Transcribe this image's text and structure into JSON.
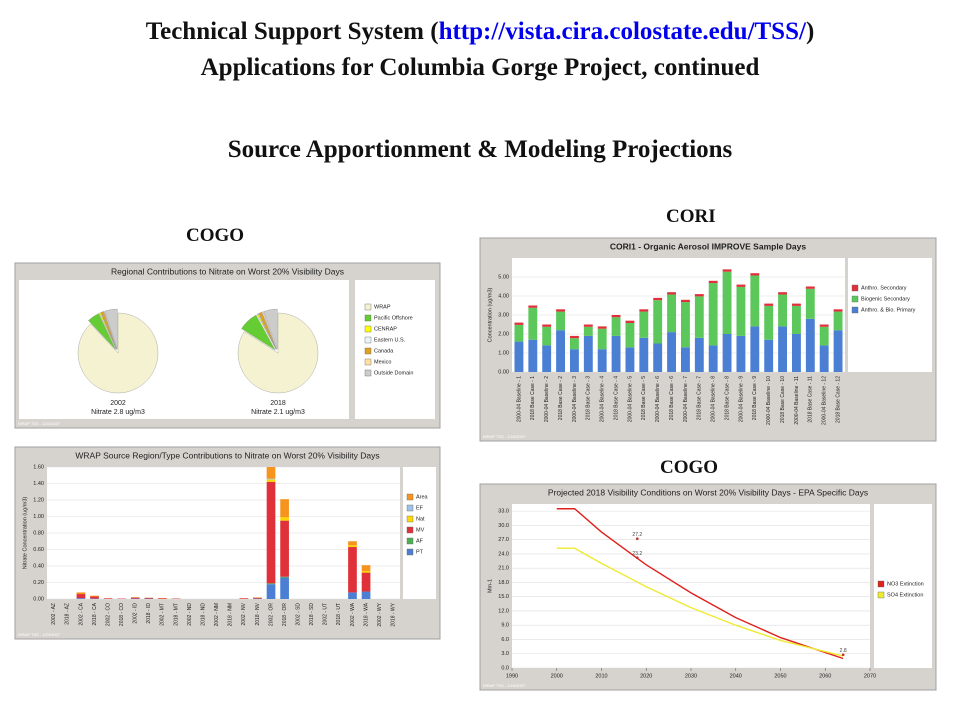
{
  "header": {
    "title_prefix": "Technical Support System (",
    "title_link": "http://vista.cira.colostate.edu/TSS/",
    "title_suffix": ")",
    "title_line2": "Applications for Columbia Gorge Project, continued",
    "subtitle": "Source Apportionment & Modeling Projections"
  },
  "labels": [
    "COGO",
    "CORI",
    "COGO"
  ],
  "chart_data": [
    {
      "type": "pie",
      "title": "Regional Contributions to Nitrate on Worst 20% Visibility Days",
      "footer": "WRAP TSS - 1/24/2007",
      "categories": [
        "WRAP",
        "Pacific Offshore",
        "CENRAP",
        "Eastern U.S.",
        "Canada",
        "Mexico",
        "Outside Domain"
      ],
      "colors": [
        "#f5f2d2",
        "#66cc33",
        "#ffff00",
        "#e8f4fc",
        "#e0a020",
        "#ffe0a0",
        "#cccccc"
      ],
      "pies": [
        {
          "label": "2002",
          "caption": "Nitrate 2.8 ug/m3",
          "values": [
            88,
            5,
            0.5,
            0.2,
            1,
            0.3,
            5
          ]
        },
        {
          "label": "2018",
          "caption": "Nitrate 2.1 ug/m3",
          "values": [
            84,
            8,
            0.5,
            0.3,
            1.2,
            0.5,
            5.5
          ]
        }
      ]
    },
    {
      "type": "stacked_bar",
      "title": "WRAP Source Region/Type Contributions to Nitrate on Worst 20% Visibility Days",
      "footer": "WRAP TSS - 1/24/2007",
      "y_label": "Nitrate Concentration (ug/m3)",
      "categories": [
        "2002 - AZ",
        "2018 - AZ",
        "2002 - CA",
        "2018 - CA",
        "2002 - CO",
        "2018 - CO",
        "2002 - ID",
        "2018 - ID",
        "2002 - MT",
        "2018 - MT",
        "2002 - ND",
        "2018 - ND",
        "2002 - NM",
        "2018 - NM",
        "2002 - NV",
        "2018 - NV",
        "2002 - OR",
        "2018 - OR",
        "2002 - SD",
        "2018 - SD",
        "2002 - UT",
        "2018 - UT",
        "2002 - WA",
        "2018 - WA",
        "2002 - WY",
        "2018 - WY"
      ],
      "ylim": [
        0,
        1.6
      ],
      "yticks": [
        {
          "value": 0,
          "label": "0.00"
        },
        {
          "value": 0.2,
          "label": "0.20"
        },
        {
          "value": 0.4,
          "label": "0.40"
        },
        {
          "value": 0.6,
          "label": "0.60"
        },
        {
          "value": 0.8,
          "label": "0.80"
        },
        {
          "value": 1,
          "label": "1.00"
        },
        {
          "value": 1.2,
          "label": "1.20"
        },
        {
          "value": 1.4,
          "label": "1.40"
        },
        {
          "value": 1.6,
          "label": "1.60"
        }
      ],
      "series": [
        {
          "name": "PT",
          "color": "#4a7fd4",
          "values": [
            0,
            0,
            0.01,
            0.005,
            0,
            0,
            0.005,
            0.005,
            0,
            0,
            0,
            0,
            0,
            0,
            0,
            0.005,
            0.18,
            0.26,
            0,
            0,
            0,
            0,
            0.08,
            0.09,
            0,
            0
          ]
        },
        {
          "name": "AF",
          "color": "#4caf50",
          "values": [
            0,
            0,
            0,
            0,
            0,
            0,
            0,
            0,
            0,
            0,
            0,
            0,
            0,
            0,
            0,
            0,
            0.01,
            0.01,
            0,
            0,
            0,
            0,
            0,
            0,
            0,
            0
          ]
        },
        {
          "name": "MV",
          "color": "#e0303a",
          "values": [
            0,
            0,
            0.05,
            0.025,
            0.008,
            0.005,
            0.012,
            0.008,
            0.008,
            0.005,
            0,
            0,
            0,
            0,
            0.008,
            0.01,
            1.23,
            0.68,
            0,
            0,
            0,
            0,
            0.55,
            0.23,
            0,
            0
          ]
        },
        {
          "name": "Nat",
          "color": "#ffd700",
          "values": [
            0,
            0,
            0,
            0,
            0,
            0,
            0,
            0,
            0,
            0,
            0,
            0,
            0,
            0,
            0,
            0,
            0.03,
            0.04,
            0,
            0,
            0,
            0,
            0.02,
            0.02,
            0,
            0
          ]
        },
        {
          "name": "EF",
          "color": "#9dc3e6",
          "values": [
            0,
            0,
            0,
            0,
            0,
            0,
            0,
            0,
            0,
            0,
            0,
            0,
            0,
            0,
            0,
            0,
            0.01,
            0,
            0,
            0,
            0,
            0,
            0,
            0,
            0,
            0
          ]
        },
        {
          "name": "Area",
          "color": "#f7941d",
          "values": [
            0,
            0,
            0.02,
            0.01,
            0,
            0,
            0.005,
            0.004,
            0.004,
            0,
            0,
            0,
            0,
            0,
            0.002,
            0.005,
            0.14,
            0.22,
            0,
            0,
            0,
            0,
            0.05,
            0.07,
            0,
            0
          ]
        }
      ]
    },
    {
      "type": "stacked_bar",
      "title": "CORI1 - Organic Aerosol IMPROVE Sample Days",
      "footer": "WRAP TSS - 1/24/2007",
      "y_label": "Concentration (ug/m3)",
      "categories": [
        "2000-04 Baseline - 1",
        "2018 Base Case - 1",
        "2000-04 Baseline - 2",
        "2018 Base Case - 2",
        "2000-04 Baseline - 3",
        "2018 Base Case - 3",
        "2000-04 Baseline - 4",
        "2018 Base Case - 4",
        "2000-04 Baseline - 5",
        "2018 Base Case - 5",
        "2000-04 Baseline - 6",
        "2018 Base Case - 6",
        "2000-04 Baseline - 7",
        "2018 Base Case - 7",
        "2000-04 Baseline - 8",
        "2018 Base Case - 8",
        "2000-04 Baseline - 9",
        "2018 Base Case - 9",
        "2000-04 Baseline - 10",
        "2018 Base Case - 10",
        "2000-04 Baseline - 11",
        "2018 Base Case - 11",
        "2000-04 Baseline - 12",
        "2018 Base Case - 12"
      ],
      "ylim": [
        0,
        6
      ],
      "yticks": [
        {
          "value": 0,
          "label": "0.00"
        },
        {
          "value": 1,
          "label": "1.00"
        },
        {
          "value": 2,
          "label": "2.00"
        },
        {
          "value": 3,
          "label": "3.00"
        },
        {
          "value": 4,
          "label": "4.00"
        },
        {
          "value": 5,
          "label": "5.00"
        }
      ],
      "series": [
        {
          "name": "Anthro. & Bio. Primary",
          "color": "#4a7fd4",
          "values": [
            1.6,
            1.7,
            1.4,
            2.2,
            1.2,
            1.9,
            1.2,
            1.9,
            1.3,
            1.8,
            1.5,
            2.1,
            1.3,
            1.8,
            1.4,
            2.0,
            1.9,
            2.4,
            1.7,
            2.4,
            2.0,
            2.8,
            1.4,
            2.2
          ]
        },
        {
          "name": "Biogenic Secondary",
          "color": "#5cc85c",
          "values": [
            0.88,
            1.68,
            0.98,
            0.98,
            0.58,
            0.48,
            1.08,
            0.98,
            1.28,
            1.38,
            2.28,
            1.98,
            2.38,
            2.18,
            3.28,
            3.28,
            2.58,
            2.68,
            1.78,
            1.68,
            1.48,
            1.58,
            0.98,
            0.98
          ]
        },
        {
          "name": "Anthro. Secondary",
          "color": "#e0303a",
          "values": [
            0.12,
            0.12,
            0.12,
            0.12,
            0.12,
            0.12,
            0.12,
            0.12,
            0.12,
            0.12,
            0.12,
            0.12,
            0.12,
            0.12,
            0.12,
            0.12,
            0.12,
            0.12,
            0.12,
            0.12,
            0.12,
            0.12,
            0.12,
            0.12
          ]
        }
      ]
    },
    {
      "type": "line",
      "title": "Projected 2018 Visibility Conditions on Worst 20% Visibility Days - EPA Specific Days",
      "footer": "WRAP TSS - 1/24/2007",
      "y_label": "Mm-1",
      "x": [
        2000,
        2004,
        2010,
        2020,
        2030,
        2040,
        2050,
        2064
      ],
      "xlim": [
        1990,
        2070
      ],
      "xticks": [
        1990,
        2000,
        2010,
        2020,
        2030,
        2040,
        2050,
        2060,
        2070
      ],
      "ylim": [
        0,
        34.5
      ],
      "yticks": [
        {
          "value": 0,
          "label": "0.0"
        },
        {
          "value": 3,
          "label": "3.0"
        },
        {
          "value": 6,
          "label": "6.0"
        },
        {
          "value": 9,
          "label": "9.0"
        },
        {
          "value": 12,
          "label": "12.0"
        },
        {
          "value": 15,
          "label": "15.0"
        },
        {
          "value": 18,
          "label": "18.0"
        },
        {
          "value": 21,
          "label": "21.0"
        },
        {
          "value": 24,
          "label": "24.0"
        },
        {
          "value": 27,
          "label": "27.0"
        },
        {
          "value": 30,
          "label": "30.0"
        },
        {
          "value": 33,
          "label": "33.0"
        }
      ],
      "series": [
        {
          "name": "NO3 Extinction",
          "color": "#e0201b",
          "values": [
            33.5,
            33.5,
            28.6,
            21.7,
            15.8,
            10.6,
            6.4,
            2.0
          ]
        },
        {
          "name": "SO4 Extinction",
          "color": "#eeea30",
          "values": [
            25.2,
            25.2,
            22.0,
            17.1,
            12.7,
            9.0,
            5.8,
            2.5
          ]
        }
      ],
      "annotations": [
        {
          "text": "27.2",
          "x": 2018,
          "y": 27.2
        },
        {
          "text": "23.2",
          "x": 2018,
          "y": 23.2
        },
        {
          "text": "2.8",
          "x": 2064,
          "y": 2.8
        }
      ]
    }
  ]
}
